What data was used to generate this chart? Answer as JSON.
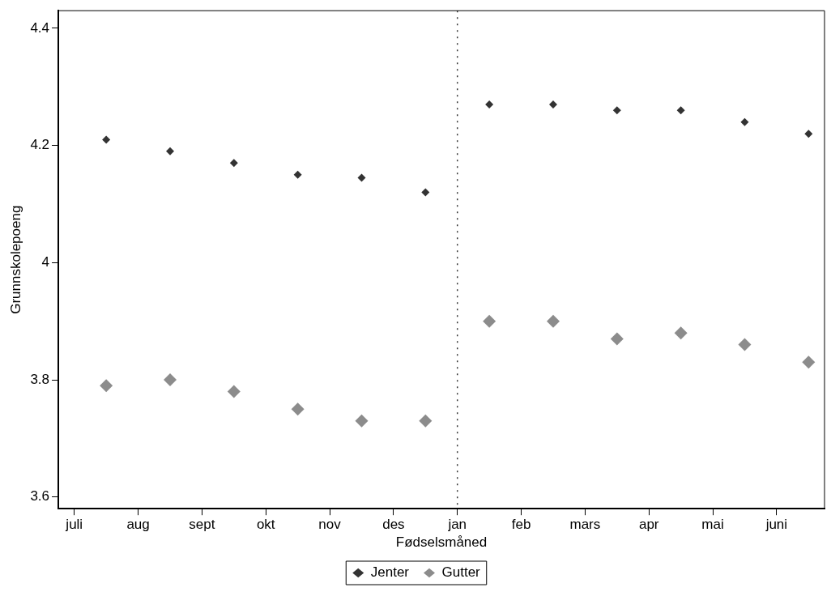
{
  "chart_data": {
    "type": "scatter",
    "xlabel": "Fødselsmåned",
    "ylabel": "Grunnskolepoeng",
    "categories": [
      "juli",
      null,
      "aug",
      null,
      "sept",
      null,
      "okt",
      null,
      "nov",
      null,
      "des",
      null,
      "jan",
      null,
      "feb",
      null,
      "mars",
      null,
      "apr",
      null,
      "mai",
      null,
      "juni",
      null
    ],
    "series": [
      {
        "name": "Jenter",
        "color": "#333333",
        "marker": "diamond",
        "values": [
          null,
          4.21,
          null,
          4.19,
          null,
          4.17,
          null,
          4.15,
          null,
          4.145,
          null,
          4.12,
          null,
          4.27,
          null,
          4.27,
          null,
          4.26,
          null,
          4.26,
          null,
          4.24,
          null,
          4.22
        ]
      },
      {
        "name": "Gutter",
        "color": "#8c8c8c",
        "marker": "diamond",
        "values": [
          null,
          3.79,
          null,
          3.8,
          null,
          3.78,
          null,
          3.75,
          null,
          3.73,
          null,
          3.73,
          null,
          3.9,
          null,
          3.9,
          null,
          3.87,
          null,
          3.88,
          null,
          3.86,
          null,
          3.83
        ]
      }
    ],
    "ylim": [
      3.58,
      4.43
    ],
    "yticks": [
      {
        "value": 3.6,
        "label": "3.6"
      },
      {
        "value": 3.8,
        "label": "3.8"
      },
      {
        "value": 4,
        "label": "4"
      },
      {
        "value": 4.2,
        "label": "4.2"
      },
      {
        "value": 4.4,
        "label": "4.4"
      }
    ],
    "ref_lines": [
      {
        "axis": "x",
        "value": "jan",
        "color": "#333333",
        "line_style": "dotted"
      }
    ],
    "grid": false,
    "legend": "bottom"
  }
}
